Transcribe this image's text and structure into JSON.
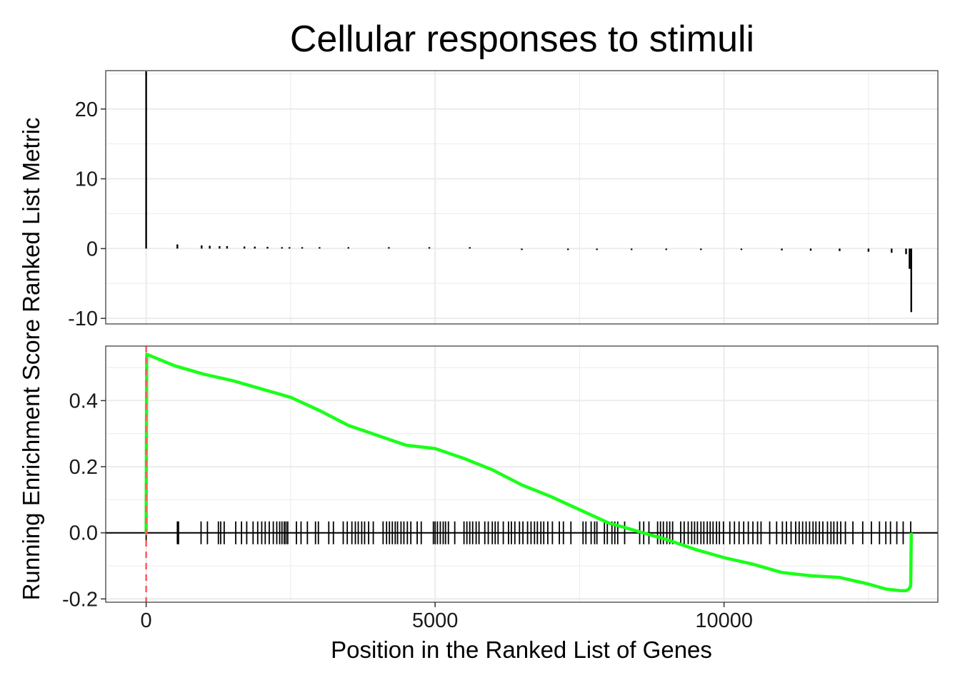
{
  "chart_data": {
    "type": "line",
    "title": "Cellular responses to stimuli",
    "xlabel": "Position in the Ranked List of Genes",
    "ylabel": "Running Enrichment Score Ranked List Metric",
    "xlim": [
      -700,
      13700
    ],
    "x_ticks": [
      0,
      5000,
      10000
    ],
    "x_tick_labels": [
      "0",
      "5000",
      "10000"
    ],
    "grid": true,
    "legend": "none",
    "colors": {
      "running_es": "#1aff1a",
      "peak_line": "#ff5a5f",
      "metric_bars": "#000000",
      "hits": "#000000",
      "grid": "#ebebeb",
      "border": "#333333"
    },
    "top_panel": {
      "ylim": [
        -10.8,
        25.5
      ],
      "y_ticks": [
        20,
        10,
        0,
        -10
      ],
      "y_tick_labels": [
        "20",
        "10",
        "0",
        "-10"
      ],
      "metric_bars": [
        {
          "x": 0,
          "y": 25.4
        },
        {
          "x": 540,
          "y": 0.6
        },
        {
          "x": 960,
          "y": 0.45
        },
        {
          "x": 1100,
          "y": 0.4
        },
        {
          "x": 1270,
          "y": 0.35
        },
        {
          "x": 1400,
          "y": 0.35
        },
        {
          "x": 1700,
          "y": 0.3
        },
        {
          "x": 1880,
          "y": 0.28
        },
        {
          "x": 2100,
          "y": 0.25
        },
        {
          "x": 2350,
          "y": 0.2
        },
        {
          "x": 2480,
          "y": 0.18
        },
        {
          "x": 2700,
          "y": 0.15
        },
        {
          "x": 3000,
          "y": 0.12
        },
        {
          "x": 3500,
          "y": 0.08
        },
        {
          "x": 4200,
          "y": 0.05
        },
        {
          "x": 4900,
          "y": 0.03
        },
        {
          "x": 5600,
          "y": 0.01
        },
        {
          "x": 6500,
          "y": -0.02
        },
        {
          "x": 7300,
          "y": -0.05
        },
        {
          "x": 7800,
          "y": -0.07
        },
        {
          "x": 8400,
          "y": -0.1
        },
        {
          "x": 9000,
          "y": -0.13
        },
        {
          "x": 9600,
          "y": -0.17
        },
        {
          "x": 10300,
          "y": -0.2
        },
        {
          "x": 11000,
          "y": -0.25
        },
        {
          "x": 11500,
          "y": -0.3
        },
        {
          "x": 12000,
          "y": -0.35
        },
        {
          "x": 12500,
          "y": -0.45
        },
        {
          "x": 12900,
          "y": -0.6
        },
        {
          "x": 13150,
          "y": -0.8
        },
        {
          "x": 13210,
          "y": -2.9
        },
        {
          "x": 13240,
          "y": -9.1
        }
      ]
    },
    "bottom_panel": {
      "ylim": [
        -0.21,
        0.565
      ],
      "y_ticks": [
        0.4,
        0.2,
        0.0,
        -0.2
      ],
      "y_tick_labels": [
        "0.4",
        "0.2",
        "0.0",
        "-0.2"
      ],
      "peak_x": 0,
      "running_es": {
        "x": [
          0,
          10,
          500,
          1000,
          1500,
          2000,
          2500,
          3000,
          3500,
          4000,
          4500,
          5000,
          5500,
          6000,
          6500,
          7000,
          7500,
          8000,
          8500,
          9000,
          9500,
          10000,
          10500,
          11000,
          11500,
          12000,
          12500,
          12800,
          13050,
          13150,
          13200,
          13230,
          13240
        ],
        "y": [
          0.0,
          0.54,
          0.505,
          0.48,
          0.46,
          0.435,
          0.41,
          0.37,
          0.325,
          0.295,
          0.265,
          0.255,
          0.225,
          0.19,
          0.145,
          0.11,
          0.07,
          0.03,
          0.005,
          -0.02,
          -0.05,
          -0.075,
          -0.095,
          -0.12,
          -0.13,
          -0.135,
          -0.155,
          -0.17,
          -0.175,
          -0.175,
          -0.17,
          -0.16,
          0.0
        ]
      },
      "hits": [
        0,
        540,
        560,
        950,
        1060,
        1250,
        1290,
        1350,
        1550,
        1650,
        1740,
        1850,
        1930,
        2000,
        2060,
        2130,
        2200,
        2260,
        2310,
        2350,
        2390,
        2420,
        2450,
        2600,
        2680,
        2790,
        2930,
        2980,
        3160,
        3240,
        3410,
        3480,
        3560,
        3620,
        3670,
        3730,
        3780,
        3850,
        3930,
        4100,
        4160,
        4210,
        4260,
        4310,
        4350,
        4410,
        4460,
        4520,
        4580,
        4690,
        4760,
        4970,
        5000,
        5040,
        5090,
        5140,
        5180,
        5230,
        5340,
        5500,
        5550,
        5600,
        5650,
        5710,
        5760,
        5860,
        5920,
        5990,
        6040,
        6090,
        6180,
        6270,
        6320,
        6380,
        6460,
        6520,
        6600,
        6660,
        6720,
        6770,
        6830,
        6880,
        6950,
        7030,
        7150,
        7220,
        7350,
        7560,
        7610,
        7700,
        7760,
        7800,
        7930,
        7980,
        8060,
        8110,
        8160,
        8280,
        8540,
        8610,
        8700,
        8850,
        8900,
        8950,
        9010,
        9060,
        9110,
        9250,
        9310,
        9380,
        9440,
        9490,
        9540,
        9600,
        9650,
        9710,
        9760,
        9810,
        9870,
        9920,
        9990,
        10100,
        10180,
        10260,
        10340,
        10420,
        10500,
        10580,
        10640,
        10790,
        10910,
        11010,
        11080,
        11160,
        11240,
        11300,
        11360,
        11420,
        11480,
        11540,
        11590,
        11650,
        11710,
        11790,
        11850,
        11900,
        11960,
        12020,
        12100,
        12230,
        12400,
        12550,
        12690,
        12800,
        12880,
        12990,
        13100,
        13230
      ]
    }
  }
}
